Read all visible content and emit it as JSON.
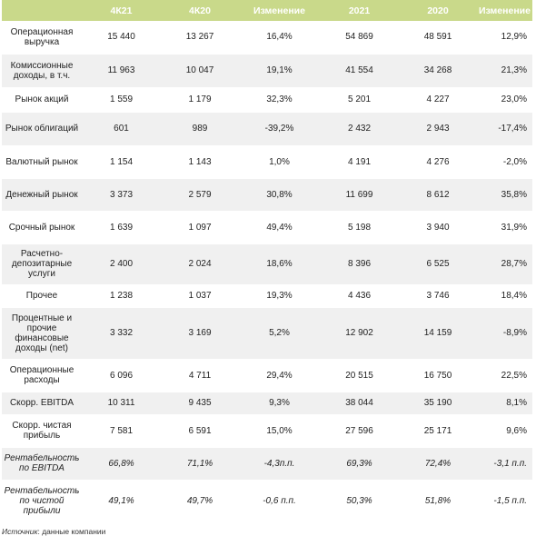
{
  "header": {
    "col0": "",
    "col1": "4К21",
    "col2": "4К20",
    "col3": "Изменение",
    "col4": "2021",
    "col5": "2020",
    "col6": "Изменение"
  },
  "rows": [
    {
      "label": "Операционная выручка",
      "q4_21": "15 440",
      "q4_20": "13 267",
      "chg_q": "16,4%",
      "y21": "54 869",
      "y20": "48 591",
      "chg_y": "12,9%"
    },
    {
      "label": "Комиссионные доходы, в т.ч.",
      "q4_21": "11 963",
      "q4_20": "10 047",
      "chg_q": "19,1%",
      "y21": "41 554",
      "y20": "34 268",
      "chg_y": "21,3%"
    },
    {
      "label": "Рынок акций",
      "q4_21": "1 559",
      "q4_20": "1 179",
      "chg_q": "32,3%",
      "y21": "5 201",
      "y20": "4 227",
      "chg_y": "23,0%"
    },
    {
      "label": "Рынок облигаций",
      "q4_21": "601",
      "q4_20": "989",
      "chg_q": "-39,2%",
      "y21": "2 432",
      "y20": "2 943",
      "chg_y": "-17,4%"
    },
    {
      "label": "Валютный рынок",
      "q4_21": "1 154",
      "q4_20": "1 143",
      "chg_q": "1,0%",
      "y21": "4 191",
      "y20": "4 276",
      "chg_y": "-2,0%"
    },
    {
      "label": "Денежный рынок",
      "q4_21": "3 373",
      "q4_20": "2 579",
      "chg_q": "30,8%",
      "y21": "11 699",
      "y20": "8 612",
      "chg_y": "35,8%"
    },
    {
      "label": "Срочный рынок",
      "q4_21": "1 639",
      "q4_20": "1 097",
      "chg_q": "49,4%",
      "y21": "5 198",
      "y20": "3 940",
      "chg_y": "31,9%"
    },
    {
      "label": "Расчетно-депозитарные услуги",
      "q4_21": "2 400",
      "q4_20": "2 024",
      "chg_q": "18,6%",
      "y21": "8 396",
      "y20": "6 525",
      "chg_y": "28,7%"
    },
    {
      "label": "Прочее",
      "q4_21": "1 238",
      "q4_20": "1 037",
      "chg_q": "19,3%",
      "y21": "4 436",
      "y20": "3 746",
      "chg_y": "18,4%"
    },
    {
      "label": "Процентные и прочие финансовые доходы (net)",
      "q4_21": "3 332",
      "q4_20": "3 169",
      "chg_q": "5,2%",
      "y21": "12 902",
      "y20": "14 159",
      "chg_y": "-8,9%"
    },
    {
      "label": "Операционные расходы",
      "q4_21": "6 096",
      "q4_20": "4 711",
      "chg_q": "29,4%",
      "y21": "20 515",
      "y20": "16 750",
      "chg_y": "22,5%"
    },
    {
      "label": "Скорр. EBITDA",
      "q4_21": "10 311",
      "q4_20": "9 435",
      "chg_q": "9,3%",
      "y21": "38 044",
      "y20": "35 190",
      "chg_y": "8,1%"
    },
    {
      "label": "Скорр. чистая прибыль",
      "q4_21": "7 581",
      "q4_20": "6 591",
      "chg_q": "15,0%",
      "y21": "27 596",
      "y20": "25 171",
      "chg_y": "9,6%"
    },
    {
      "label": "Рентабельность по EBITDA",
      "q4_21": "66,8%",
      "q4_20": "71,1%",
      "chg_q": "-4,3п.п.",
      "y21": "69,3%",
      "y20": "72,4%",
      "chg_y": "-3,1 п.п."
    },
    {
      "label": "Рентабельность по чистой прибыли",
      "q4_21": "49,1%",
      "q4_20": "49,7%",
      "chg_q": "-0,6 п.п.",
      "y21": "50,3%",
      "y20": "51,8%",
      "chg_y": "-1,5 п.п."
    }
  ],
  "source": {
    "prefix": "Источник",
    "text": ": данные компании"
  },
  "colors": {
    "header_bg": "#c9d98a",
    "header_text": "#ffffff",
    "row_alt_bg": "#f0f0f0"
  }
}
